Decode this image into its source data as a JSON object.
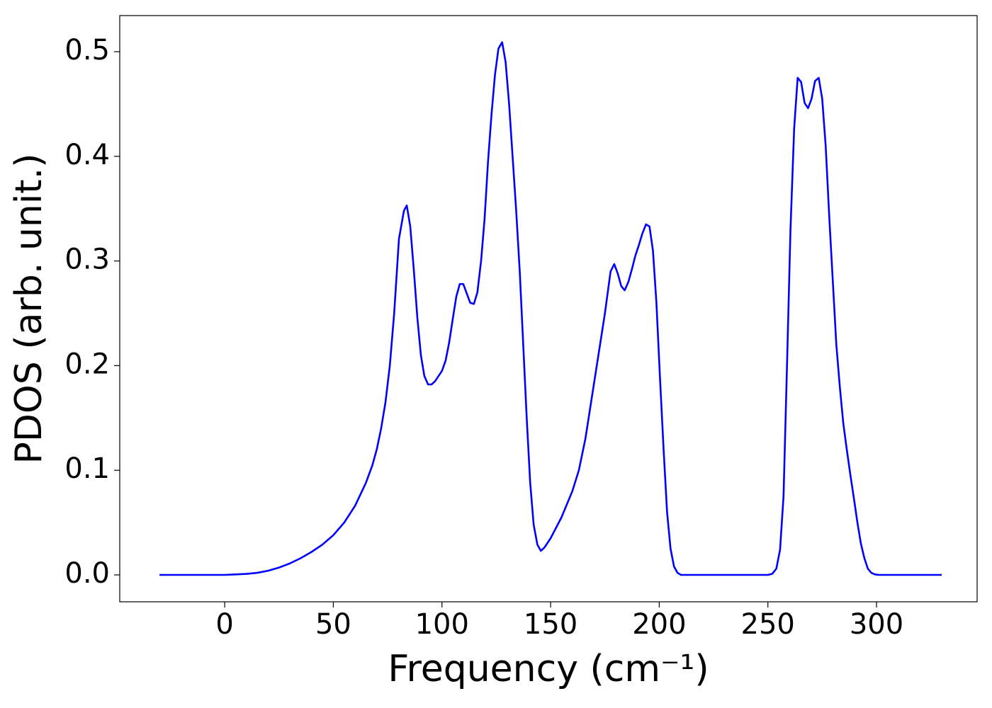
{
  "chart_data": {
    "type": "line",
    "xlabel": "Frequency (cm⁻¹)",
    "ylabel": "PDOS (arb. unit.)",
    "color": "#0000ff",
    "x": [
      -30,
      0,
      5,
      10,
      15,
      20,
      25,
      30,
      35,
      40,
      45,
      50,
      55,
      60,
      65,
      68,
      70,
      72,
      74,
      76,
      78,
      80.2,
      82.5,
      83.8,
      85.4,
      87.1,
      88.7,
      90.3,
      91.9,
      93.6,
      95.2,
      96.8,
      98.4,
      100,
      101.7,
      103.3,
      105,
      106.6,
      108.2,
      109.8,
      111.4,
      113,
      114.7,
      116.3,
      118,
      119.6,
      121.2,
      122.8,
      124.4,
      126,
      127.7,
      129.3,
      130.9,
      132.5,
      134.1,
      135.8,
      137.4,
      139,
      140.6,
      142.2,
      143.9,
      145.5,
      147.1,
      150,
      155,
      160,
      163,
      166,
      169,
      172,
      175,
      177.6,
      179.3,
      180.9,
      182.5,
      184.1,
      185.8,
      187.4,
      189,
      190.6,
      192.2,
      193.9,
      195.5,
      197.1,
      198.7,
      200.3,
      202,
      203.6,
      205.2,
      206.8,
      208.4,
      210,
      250,
      252,
      253.9,
      255.6,
      257.2,
      258.8,
      260.4,
      262.1,
      263.7,
      265.3,
      266.9,
      268.5,
      270.1,
      271.7,
      273.4,
      275,
      276.6,
      278.3,
      279.9,
      281.5,
      283.1,
      284.7,
      286.3,
      288,
      289.6,
      291.2,
      292.8,
      294.4,
      296,
      297.6,
      299.3,
      301,
      330
    ],
    "y": [
      0,
      0,
      0.0005,
      0.001,
      0.002,
      0.004,
      0.007,
      0.011,
      0.016,
      0.022,
      0.029,
      0.038,
      0.05,
      0.066,
      0.088,
      0.105,
      0.12,
      0.14,
      0.165,
      0.2,
      0.25,
      0.321,
      0.348,
      0.353,
      0.333,
      0.29,
      0.245,
      0.21,
      0.19,
      0.182,
      0.182,
      0.185,
      0.19,
      0.195,
      0.205,
      0.222,
      0.245,
      0.266,
      0.278,
      0.278,
      0.269,
      0.26,
      0.259,
      0.27,
      0.3,
      0.34,
      0.395,
      0.44,
      0.478,
      0.503,
      0.509,
      0.49,
      0.45,
      0.4,
      0.35,
      0.29,
      0.22,
      0.15,
      0.088,
      0.048,
      0.029,
      0.023,
      0.026,
      0.035,
      0.055,
      0.08,
      0.1,
      0.13,
      0.17,
      0.21,
      0.25,
      0.29,
      0.297,
      0.288,
      0.276,
      0.272,
      0.28,
      0.292,
      0.305,
      0.315,
      0.326,
      0.335,
      0.333,
      0.31,
      0.26,
      0.19,
      0.12,
      0.06,
      0.025,
      0.008,
      0.002,
      0,
      0,
      0.001,
      0.006,
      0.024,
      0.075,
      0.2,
      0.33,
      0.427,
      0.475,
      0.471,
      0.451,
      0.446,
      0.455,
      0.472,
      0.475,
      0.455,
      0.41,
      0.34,
      0.28,
      0.22,
      0.18,
      0.145,
      0.12,
      0.095,
      0.073,
      0.05,
      0.03,
      0.016,
      0.006,
      0.002,
      0.0005,
      0,
      0
    ],
    "xlim": [
      -48.3,
      346.3
    ],
    "ylim": [
      -0.0257,
      0.5345
    ],
    "xticks": [
      0,
      50,
      100,
      150,
      200,
      250,
      300
    ],
    "yticks": [
      {
        "value": 0,
        "label": "0.0"
      },
      0.1,
      0.2,
      0.3,
      0.4,
      0.5
    ]
  }
}
